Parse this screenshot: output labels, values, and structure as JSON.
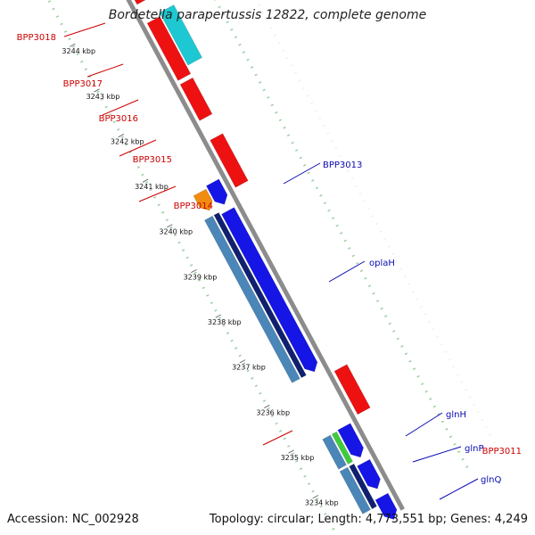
{
  "title": "Bordetella parapertussis 12822, complete genome",
  "footer": {
    "accession": "Accession: NC_002928",
    "summary": "Topology: circular; Length: 4,773,551 bp; Genes: 4,249"
  },
  "ticks": [
    "3244 kbp",
    "3243 kbp",
    "3242 kbp",
    "3241 kbp",
    "3240 kbp",
    "3239 kbp",
    "3238 kbp",
    "3237 kbp",
    "3236 kbp",
    "3235 kbp",
    "3234 kbp"
  ],
  "colors": {
    "backbone": "#8c8c8c",
    "dots": "#1e8a1e",
    "reverse_cds": "#ee1111",
    "reverse_other": "#1ec8d2",
    "forward_cds": "#1515e6",
    "forward_gene": "#102070",
    "forward_feature": "#4a86b8",
    "orange": "#f08c10",
    "green": "#3ecc3e",
    "label_red": "#cc0000",
    "label_blue": "#0a0ab4"
  },
  "reverse_labels": [
    "BPP3018",
    "BPP3017",
    "BPP3016",
    "BPP3015",
    "BPP3014",
    "BPP3011"
  ],
  "forward_labels": [
    "BPP3013",
    "oplaH",
    "glnH",
    "glnP",
    "glnQ"
  ]
}
